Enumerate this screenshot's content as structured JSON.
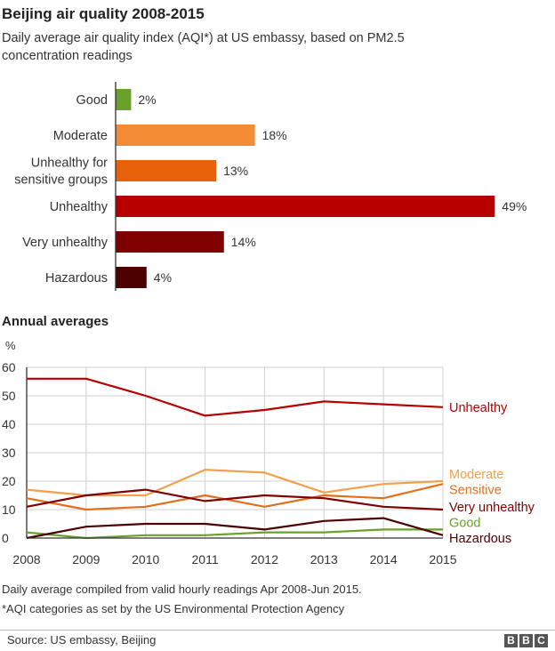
{
  "title": "Beijing air quality 2008-2015",
  "subtitle": "Daily average air quality index (AQI*) at US embassy, based on PM2.5 concentration readings",
  "chart_data": [
    {
      "type": "bar",
      "orientation": "horizontal",
      "categories": [
        [
          "Good"
        ],
        [
          "Moderate"
        ],
        [
          "Unhealthy for",
          "sensitive groups"
        ],
        [
          "Unhealthy"
        ],
        [
          "Very unhealthy"
        ],
        [
          "Hazardous"
        ]
      ],
      "values": [
        2,
        18,
        13,
        49,
        14,
        4
      ],
      "value_labels": [
        "2%",
        "18%",
        "13%",
        "49%",
        "14%",
        "4%"
      ],
      "colors": [
        "#6aa12a",
        "#f48c35",
        "#e8620c",
        "#b80000",
        "#800000",
        "#4d0000"
      ],
      "xlim": [
        0,
        50
      ]
    },
    {
      "type": "line",
      "title": "Annual averages",
      "ylabel": "%",
      "x": [
        2008,
        2009,
        2010,
        2011,
        2012,
        2013,
        2014,
        2015
      ],
      "x_labels": [
        "2008",
        "2009",
        "2010",
        "2011",
        "2012",
        "2013",
        "2014",
        "2015"
      ],
      "ylim": [
        0,
        60
      ],
      "yticks": [
        0,
        10,
        20,
        30,
        40,
        50,
        60
      ],
      "grid": true,
      "legend": "direct labels at right end of lines",
      "series": [
        {
          "name": "Unhealthy",
          "color": "#b80000",
          "values": [
            56,
            56,
            50,
            43,
            45,
            48,
            47,
            46
          ]
        },
        {
          "name": "Moderate",
          "color": "#f4a04a",
          "values": [
            17,
            15,
            15,
            24,
            23,
            16,
            19,
            20
          ]
        },
        {
          "name": "Sensitive",
          "color": "#e26f1c",
          "values": [
            14,
            10,
            11,
            15,
            11,
            15,
            14,
            19
          ]
        },
        {
          "name": "Very unhealthy",
          "color": "#800000",
          "values": [
            11,
            15,
            17,
            13,
            15,
            14,
            11,
            10
          ]
        },
        {
          "name": "Good",
          "color": "#6aa12a",
          "values": [
            2,
            0,
            1,
            1,
            2,
            2,
            3,
            3
          ]
        },
        {
          "name": "Hazardous",
          "color": "#4d0000",
          "values": [
            0,
            4,
            5,
            5,
            3,
            6,
            7,
            1
          ]
        }
      ],
      "label_y": [
        46,
        22.5,
        17,
        11,
        5.5,
        0
      ]
    }
  ],
  "footnotes": [
    "Daily average compiled from valid hourly readings Apr 2008-Jun 2015.",
    "*AQI categories as set by the US Environmental Protection Agency"
  ],
  "source": "Source: US embassy, Beijing",
  "logo_letters": [
    "B",
    "B",
    "C"
  ]
}
